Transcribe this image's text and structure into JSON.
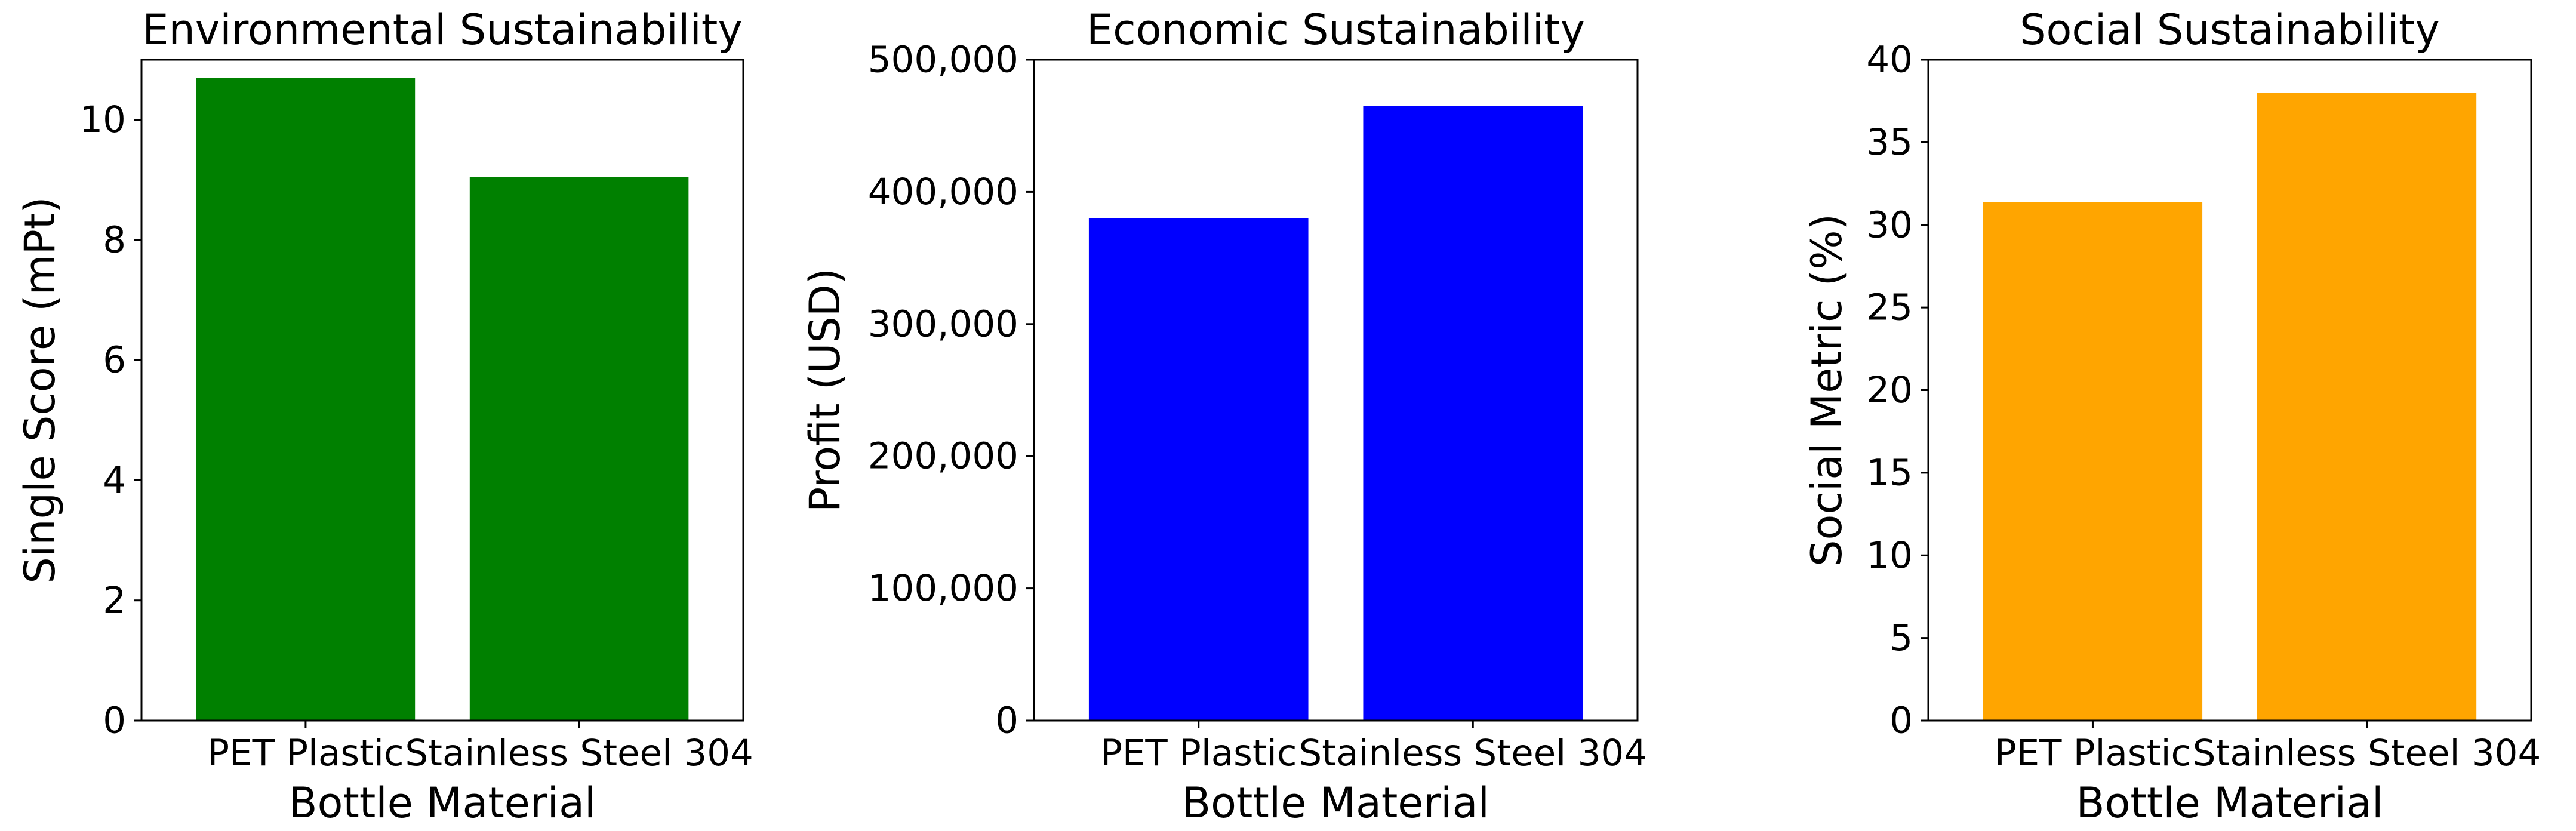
{
  "chart_data": [
    {
      "type": "bar",
      "title": "Environmental Sustainability",
      "xlabel": "Bottle Material",
      "ylabel": "Single Score (mPt)",
      "categories": [
        "PET Plastic",
        "Stainless Steel 304"
      ],
      "values": [
        10.7,
        9.05
      ],
      "ylim": [
        0,
        11
      ],
      "yticks": [
        0,
        2,
        4,
        6,
        8,
        10
      ],
      "ytick_labels": [
        "0",
        "2",
        "4",
        "6",
        "8",
        "10"
      ],
      "color": "#008000",
      "grid": false
    },
    {
      "type": "bar",
      "title": "Economic Sustainability",
      "xlabel": "Bottle Material",
      "ylabel": "Profit (USD)",
      "categories": [
        "PET Plastic",
        "Stainless Steel 304"
      ],
      "values": [
        380000,
        465000
      ],
      "ylim": [
        0,
        500000
      ],
      "yticks": [
        0,
        100000,
        200000,
        300000,
        400000,
        500000
      ],
      "ytick_labels": [
        "0",
        "100,000",
        "200,000",
        "300,000",
        "400,000",
        "500,000"
      ],
      "color": "#0000ff",
      "grid": false
    },
    {
      "type": "bar",
      "title": "Social Sustainability",
      "xlabel": "Bottle Material",
      "ylabel": "Social Metric (%)",
      "categories": [
        "PET Plastic",
        "Stainless Steel 304"
      ],
      "values": [
        31.4,
        38.0
      ],
      "ylim": [
        0,
        40
      ],
      "yticks": [
        0,
        5,
        10,
        15,
        20,
        25,
        30,
        35,
        40
      ],
      "ytick_labels": [
        "0",
        "5",
        "10",
        "15",
        "20",
        "25",
        "30",
        "35",
        "40"
      ],
      "color": "#ffa500",
      "grid": false
    }
  ]
}
